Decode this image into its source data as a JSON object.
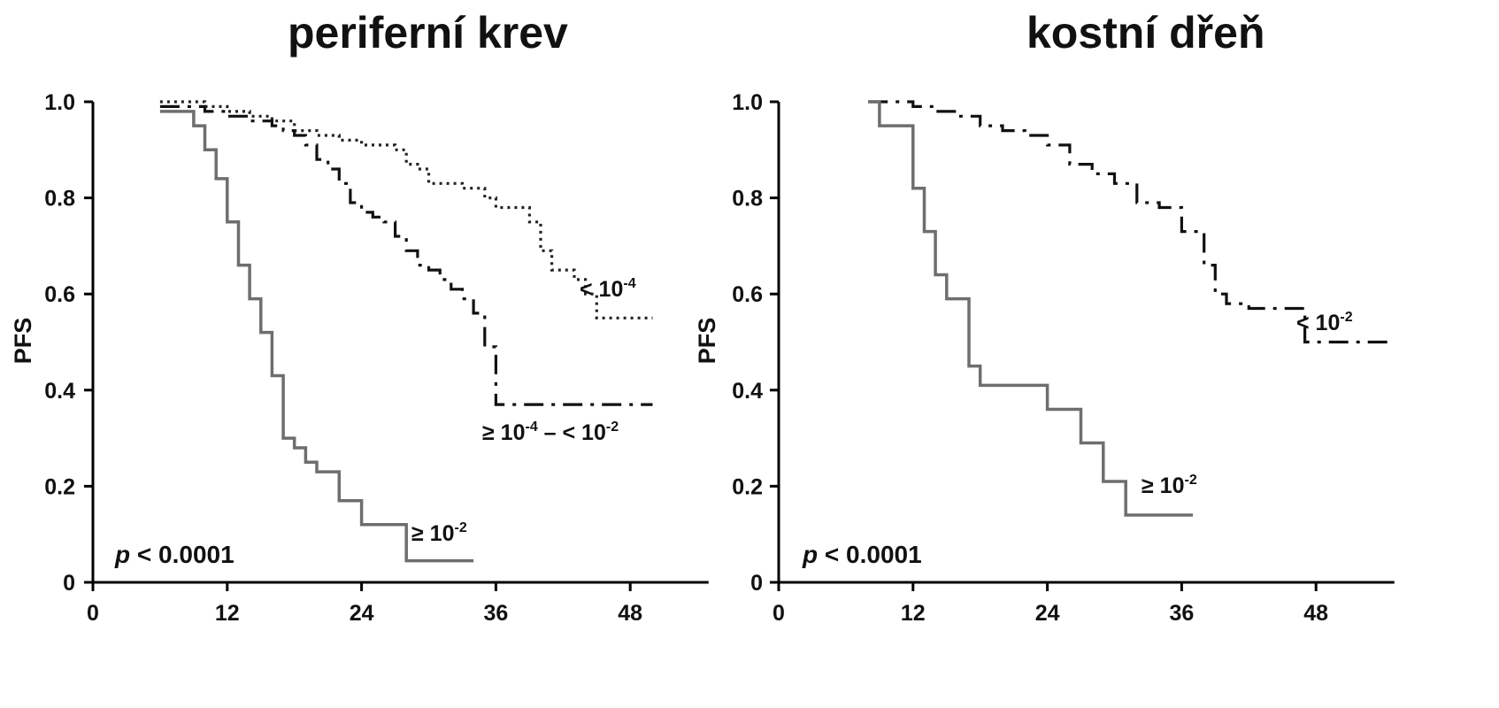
{
  "chart_data": [
    {
      "type": "line",
      "step": true,
      "title": "periferní krev",
      "xlabel": "",
      "ylabel": "PFS",
      "xlim": [
        0,
        55
      ],
      "ylim": [
        0,
        1.0
      ],
      "xticks": [
        0,
        12,
        24,
        36,
        48
      ],
      "yticks": [
        0,
        0.2,
        0.4,
        0.6,
        0.8,
        1.0
      ],
      "ytick_labels": [
        "0",
        "0.2",
        "0.4",
        "0.6",
        "0.8",
        "1.0"
      ],
      "annotation": {
        "italic": "p",
        "text": "< 0.0001"
      },
      "series": [
        {
          "label": "< 10",
          "exp": "-4",
          "style": "dotted",
          "color": "#222222",
          "x": [
            6,
            8,
            10,
            12,
            14,
            16,
            18,
            20,
            22,
            24,
            26,
            27,
            28,
            29,
            30,
            33,
            35,
            36,
            39,
            40,
            41,
            43,
            44,
            45,
            50
          ],
          "y": [
            1.0,
            1.0,
            0.99,
            0.98,
            0.97,
            0.96,
            0.94,
            0.93,
            0.92,
            0.91,
            0.91,
            0.9,
            0.87,
            0.86,
            0.83,
            0.82,
            0.8,
            0.78,
            0.75,
            0.69,
            0.65,
            0.63,
            0.6,
            0.55,
            0.55
          ]
        },
        {
          "label": "≥ 10",
          "exp": "-4",
          "label2": "– < 10",
          "exp2": "-2",
          "style": "dashdot",
          "color": "#111111",
          "x": [
            6,
            8,
            10,
            12,
            14,
            16,
            17,
            18,
            19,
            20,
            21,
            22,
            23,
            24,
            25,
            26,
            27,
            28,
            29,
            30,
            31,
            32,
            33,
            34,
            35,
            36,
            39,
            42,
            45,
            48,
            50
          ],
          "y": [
            0.99,
            0.99,
            0.98,
            0.97,
            0.96,
            0.95,
            0.94,
            0.93,
            0.91,
            0.88,
            0.86,
            0.83,
            0.79,
            0.77,
            0.76,
            0.75,
            0.72,
            0.69,
            0.66,
            0.65,
            0.63,
            0.61,
            0.59,
            0.56,
            0.49,
            0.37,
            0.37,
            0.37,
            0.37,
            0.37,
            0.37
          ]
        },
        {
          "label": "≥ 10",
          "exp": "-2",
          "style": "solid",
          "color": "#6e6e6e",
          "x": [
            6,
            8,
            9,
            10,
            11,
            12,
            13,
            14,
            15,
            16,
            17,
            18,
            19,
            20,
            22,
            23,
            24,
            26,
            28,
            31,
            34
          ],
          "y": [
            0.98,
            0.98,
            0.95,
            0.9,
            0.84,
            0.75,
            0.66,
            0.59,
            0.52,
            0.43,
            0.3,
            0.28,
            0.25,
            0.23,
            0.17,
            0.17,
            0.12,
            0.12,
            0.045,
            0.045,
            0.045
          ]
        }
      ]
    },
    {
      "type": "line",
      "step": true,
      "title": "kostní dřeň",
      "xlabel": "",
      "ylabel": "PFS",
      "xlim": [
        0,
        55
      ],
      "ylim": [
        0,
        1.0
      ],
      "xticks": [
        0,
        12,
        24,
        36,
        48
      ],
      "yticks": [
        0,
        0.2,
        0.4,
        0.6,
        0.8,
        1.0
      ],
      "ytick_labels": [
        "0",
        "0.2",
        "0.4",
        "0.6",
        "0.8",
        "1.0"
      ],
      "annotation": {
        "italic": "p",
        "text": "< 0.0001"
      },
      "series": [
        {
          "label": "< 10",
          "exp": "-2",
          "style": "dashdot",
          "color": "#111111",
          "x": [
            8,
            10,
            12,
            14,
            16,
            18,
            20,
            22,
            24,
            26,
            28,
            30,
            32,
            34,
            36,
            38,
            39,
            40,
            42,
            44,
            47,
            50,
            55
          ],
          "y": [
            1.0,
            1.0,
            0.99,
            0.98,
            0.97,
            0.95,
            0.94,
            0.93,
            0.91,
            0.87,
            0.85,
            0.83,
            0.79,
            0.78,
            0.73,
            0.66,
            0.6,
            0.58,
            0.57,
            0.57,
            0.5,
            0.5,
            0.5
          ]
        },
        {
          "label": "≥ 10",
          "exp": "-2",
          "style": "solid",
          "color": "#6e6e6e",
          "x": [
            8,
            9,
            10,
            12,
            13,
            14,
            15,
            16,
            17,
            18,
            20,
            24,
            27,
            29,
            31,
            37
          ],
          "y": [
            1.0,
            0.95,
            0.95,
            0.82,
            0.73,
            0.64,
            0.59,
            0.59,
            0.45,
            0.41,
            0.41,
            0.36,
            0.29,
            0.21,
            0.14,
            0.14
          ]
        }
      ]
    }
  ]
}
